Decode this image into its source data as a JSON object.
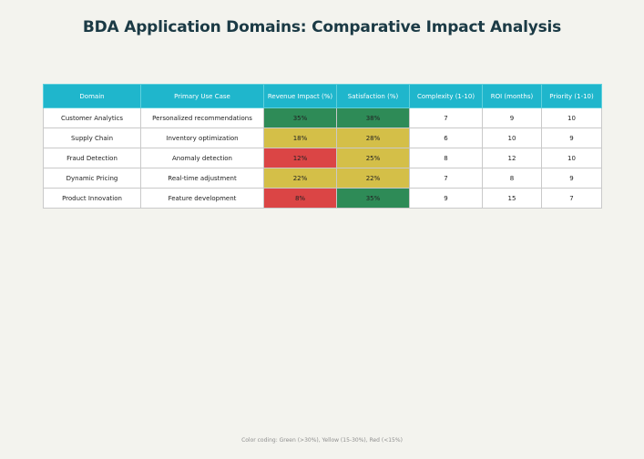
{
  "title": "BDA Application Domains: Comparative Impact Analysis",
  "footnote": "Color coding: Green (>30%), Yellow (15-30%), Red (<15%)",
  "colors": {
    "header": "#1fb6cc",
    "green": "#2e8b57",
    "yellow": "#d4bf48",
    "red": "#db4545"
  },
  "chart_data": {
    "type": "table",
    "columns": [
      "Domain",
      "Primary Use Case",
      "Revenue Impact (%)",
      "Satisfaction (%)",
      "Complexity (1-10)",
      "ROI (months)",
      "Priority (1-10)"
    ],
    "rows": [
      [
        "Customer Analytics",
        "Personalized recommendations",
        "35%",
        "38%",
        "7",
        "9",
        "10"
      ],
      [
        "Supply Chain",
        "Inventory optimization",
        "18%",
        "28%",
        "6",
        "10",
        "9"
      ],
      [
        "Fraud Detection",
        "Anomaly detection",
        "12%",
        "25%",
        "8",
        "12",
        "10"
      ],
      [
        "Dynamic Pricing",
        "Real-time adjustment",
        "22%",
        "22%",
        "7",
        "8",
        "9"
      ],
      [
        "Product Innovation",
        "Feature development",
        "8%",
        "35%",
        "9",
        "15",
        "7"
      ]
    ],
    "cell_colors": [
      [
        "",
        "",
        "green",
        "green",
        "",
        "",
        ""
      ],
      [
        "",
        "",
        "yellow",
        "yellow",
        "",
        "",
        ""
      ],
      [
        "",
        "",
        "red",
        "yellow",
        "",
        "",
        ""
      ],
      [
        "",
        "",
        "yellow",
        "yellow",
        "",
        "",
        ""
      ],
      [
        "",
        "",
        "red",
        "green",
        "",
        "",
        ""
      ]
    ]
  }
}
